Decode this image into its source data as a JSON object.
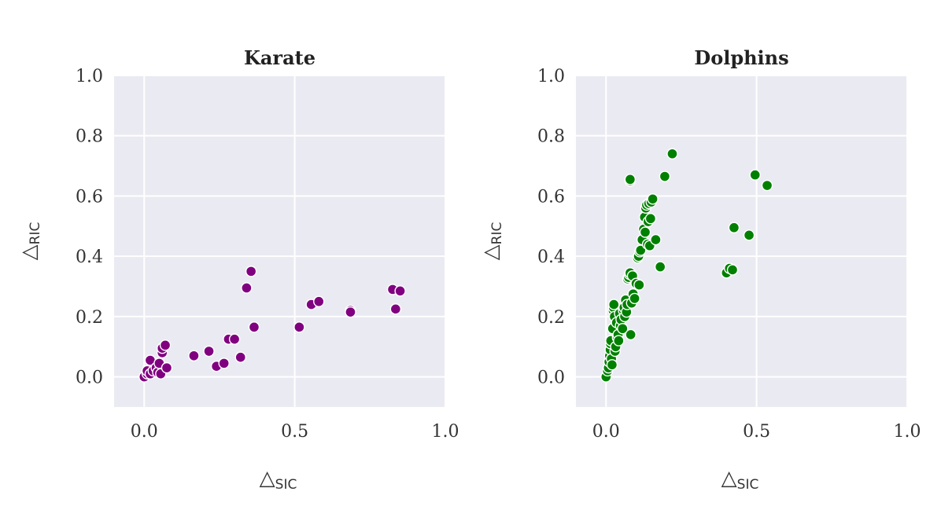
{
  "chart_data": [
    {
      "type": "scatter",
      "title": "Karate",
      "xlabel": {
        "main": "△",
        "sub": "SIC"
      },
      "ylabel": {
        "main": "△",
        "sub": "RIC"
      },
      "xlim": [
        -0.1,
        1.0
      ],
      "ylim": [
        -0.1,
        1.0
      ],
      "xticks": [
        "0.0",
        "0.5",
        "1.0"
      ],
      "xtick_values": [
        0.0,
        0.5,
        1.0
      ],
      "yticks": [
        "0.0",
        "0.2",
        "0.4",
        "0.6",
        "0.8",
        "1.0"
      ],
      "ytick_values": [
        0.0,
        0.2,
        0.4,
        0.6,
        0.8,
        1.0
      ],
      "grid": true,
      "color": "#800080",
      "points": [
        [
          0.0,
          0.0
        ],
        [
          0.01,
          0.01
        ],
        [
          0.01,
          0.02
        ],
        [
          0.02,
          0.01
        ],
        [
          0.02,
          0.055
        ],
        [
          0.03,
          0.02
        ],
        [
          0.04,
          0.03
        ],
        [
          0.045,
          0.015
        ],
        [
          0.05,
          0.045
        ],
        [
          0.055,
          0.01
        ],
        [
          0.06,
          0.08
        ],
        [
          0.06,
          0.095
        ],
        [
          0.07,
          0.105
        ],
        [
          0.075,
          0.03
        ],
        [
          0.165,
          0.07
        ],
        [
          0.215,
          0.085
        ],
        [
          0.24,
          0.035
        ],
        [
          0.265,
          0.045
        ],
        [
          0.28,
          0.125
        ],
        [
          0.3,
          0.125
        ],
        [
          0.32,
          0.065
        ],
        [
          0.34,
          0.295
        ],
        [
          0.355,
          0.35
        ],
        [
          0.365,
          0.165
        ],
        [
          0.515,
          0.165
        ],
        [
          0.555,
          0.24
        ],
        [
          0.58,
          0.25
        ],
        [
          0.685,
          0.22
        ],
        [
          0.685,
          0.215
        ],
        [
          0.825,
          0.29
        ],
        [
          0.835,
          0.225
        ],
        [
          0.85,
          0.285
        ]
      ]
    },
    {
      "type": "scatter",
      "title": "Dolphins",
      "xlabel": {
        "main": "△",
        "sub": "SIC"
      },
      "ylabel": {
        "main": "△",
        "sub": "RIC"
      },
      "xlim": [
        -0.1,
        1.0
      ],
      "ylim": [
        -0.1,
        1.0
      ],
      "xticks": [
        "0.0",
        "0.5",
        "1.0"
      ],
      "xtick_values": [
        0.0,
        0.5,
        1.0
      ],
      "yticks": [
        "0.0",
        "0.2",
        "0.4",
        "0.6",
        "0.8",
        "1.0"
      ],
      "ytick_values": [
        0.0,
        0.2,
        0.4,
        0.6,
        0.8,
        1.0
      ],
      "grid": true,
      "color": "#008000",
      "points": [
        [
          0.0,
          0.0
        ],
        [
          0.005,
          0.02
        ],
        [
          0.008,
          0.03
        ],
        [
          0.01,
          0.05
        ],
        [
          0.012,
          0.07
        ],
        [
          0.014,
          0.09
        ],
        [
          0.015,
          0.11
        ],
        [
          0.016,
          0.12
        ],
        [
          0.018,
          0.06
        ],
        [
          0.02,
          0.04
        ],
        [
          0.022,
          0.16
        ],
        [
          0.024,
          0.22
        ],
        [
          0.025,
          0.23
        ],
        [
          0.026,
          0.24
        ],
        [
          0.028,
          0.2
        ],
        [
          0.03,
          0.085
        ],
        [
          0.032,
          0.1
        ],
        [
          0.035,
          0.18
        ],
        [
          0.038,
          0.13
        ],
        [
          0.04,
          0.14
        ],
        [
          0.042,
          0.12
        ],
        [
          0.045,
          0.21
        ],
        [
          0.048,
          0.17
        ],
        [
          0.05,
          0.19
        ],
        [
          0.055,
          0.16
        ],
        [
          0.058,
          0.22
        ],
        [
          0.06,
          0.23
        ],
        [
          0.062,
          0.2
        ],
        [
          0.065,
          0.255
        ],
        [
          0.068,
          0.215
        ],
        [
          0.07,
          0.24
        ],
        [
          0.072,
          0.325
        ],
        [
          0.075,
          0.33
        ],
        [
          0.078,
          0.34
        ],
        [
          0.08,
          0.345
        ],
        [
          0.08,
          0.65
        ],
        [
          0.08,
          0.655
        ],
        [
          0.082,
          0.14
        ],
        [
          0.085,
          0.245
        ],
        [
          0.088,
          0.335
        ],
        [
          0.09,
          0.275
        ],
        [
          0.095,
          0.26
        ],
        [
          0.1,
          0.31
        ],
        [
          0.105,
          0.395
        ],
        [
          0.108,
          0.4
        ],
        [
          0.11,
          0.305
        ],
        [
          0.112,
          0.415
        ],
        [
          0.115,
          0.42
        ],
        [
          0.12,
          0.455
        ],
        [
          0.125,
          0.49
        ],
        [
          0.128,
          0.53
        ],
        [
          0.13,
          0.48
        ],
        [
          0.132,
          0.56
        ],
        [
          0.135,
          0.57
        ],
        [
          0.138,
          0.44
        ],
        [
          0.14,
          0.515
        ],
        [
          0.142,
          0.575
        ],
        [
          0.145,
          0.435
        ],
        [
          0.148,
          0.525
        ],
        [
          0.15,
          0.58
        ],
        [
          0.155,
          0.59
        ],
        [
          0.165,
          0.455
        ],
        [
          0.18,
          0.365
        ],
        [
          0.195,
          0.665
        ],
        [
          0.22,
          0.74
        ],
        [
          0.4,
          0.345
        ],
        [
          0.41,
          0.36
        ],
        [
          0.42,
          0.355
        ],
        [
          0.425,
          0.495
        ],
        [
          0.475,
          0.47
        ],
        [
          0.495,
          0.67
        ],
        [
          0.535,
          0.635
        ]
      ]
    }
  ]
}
